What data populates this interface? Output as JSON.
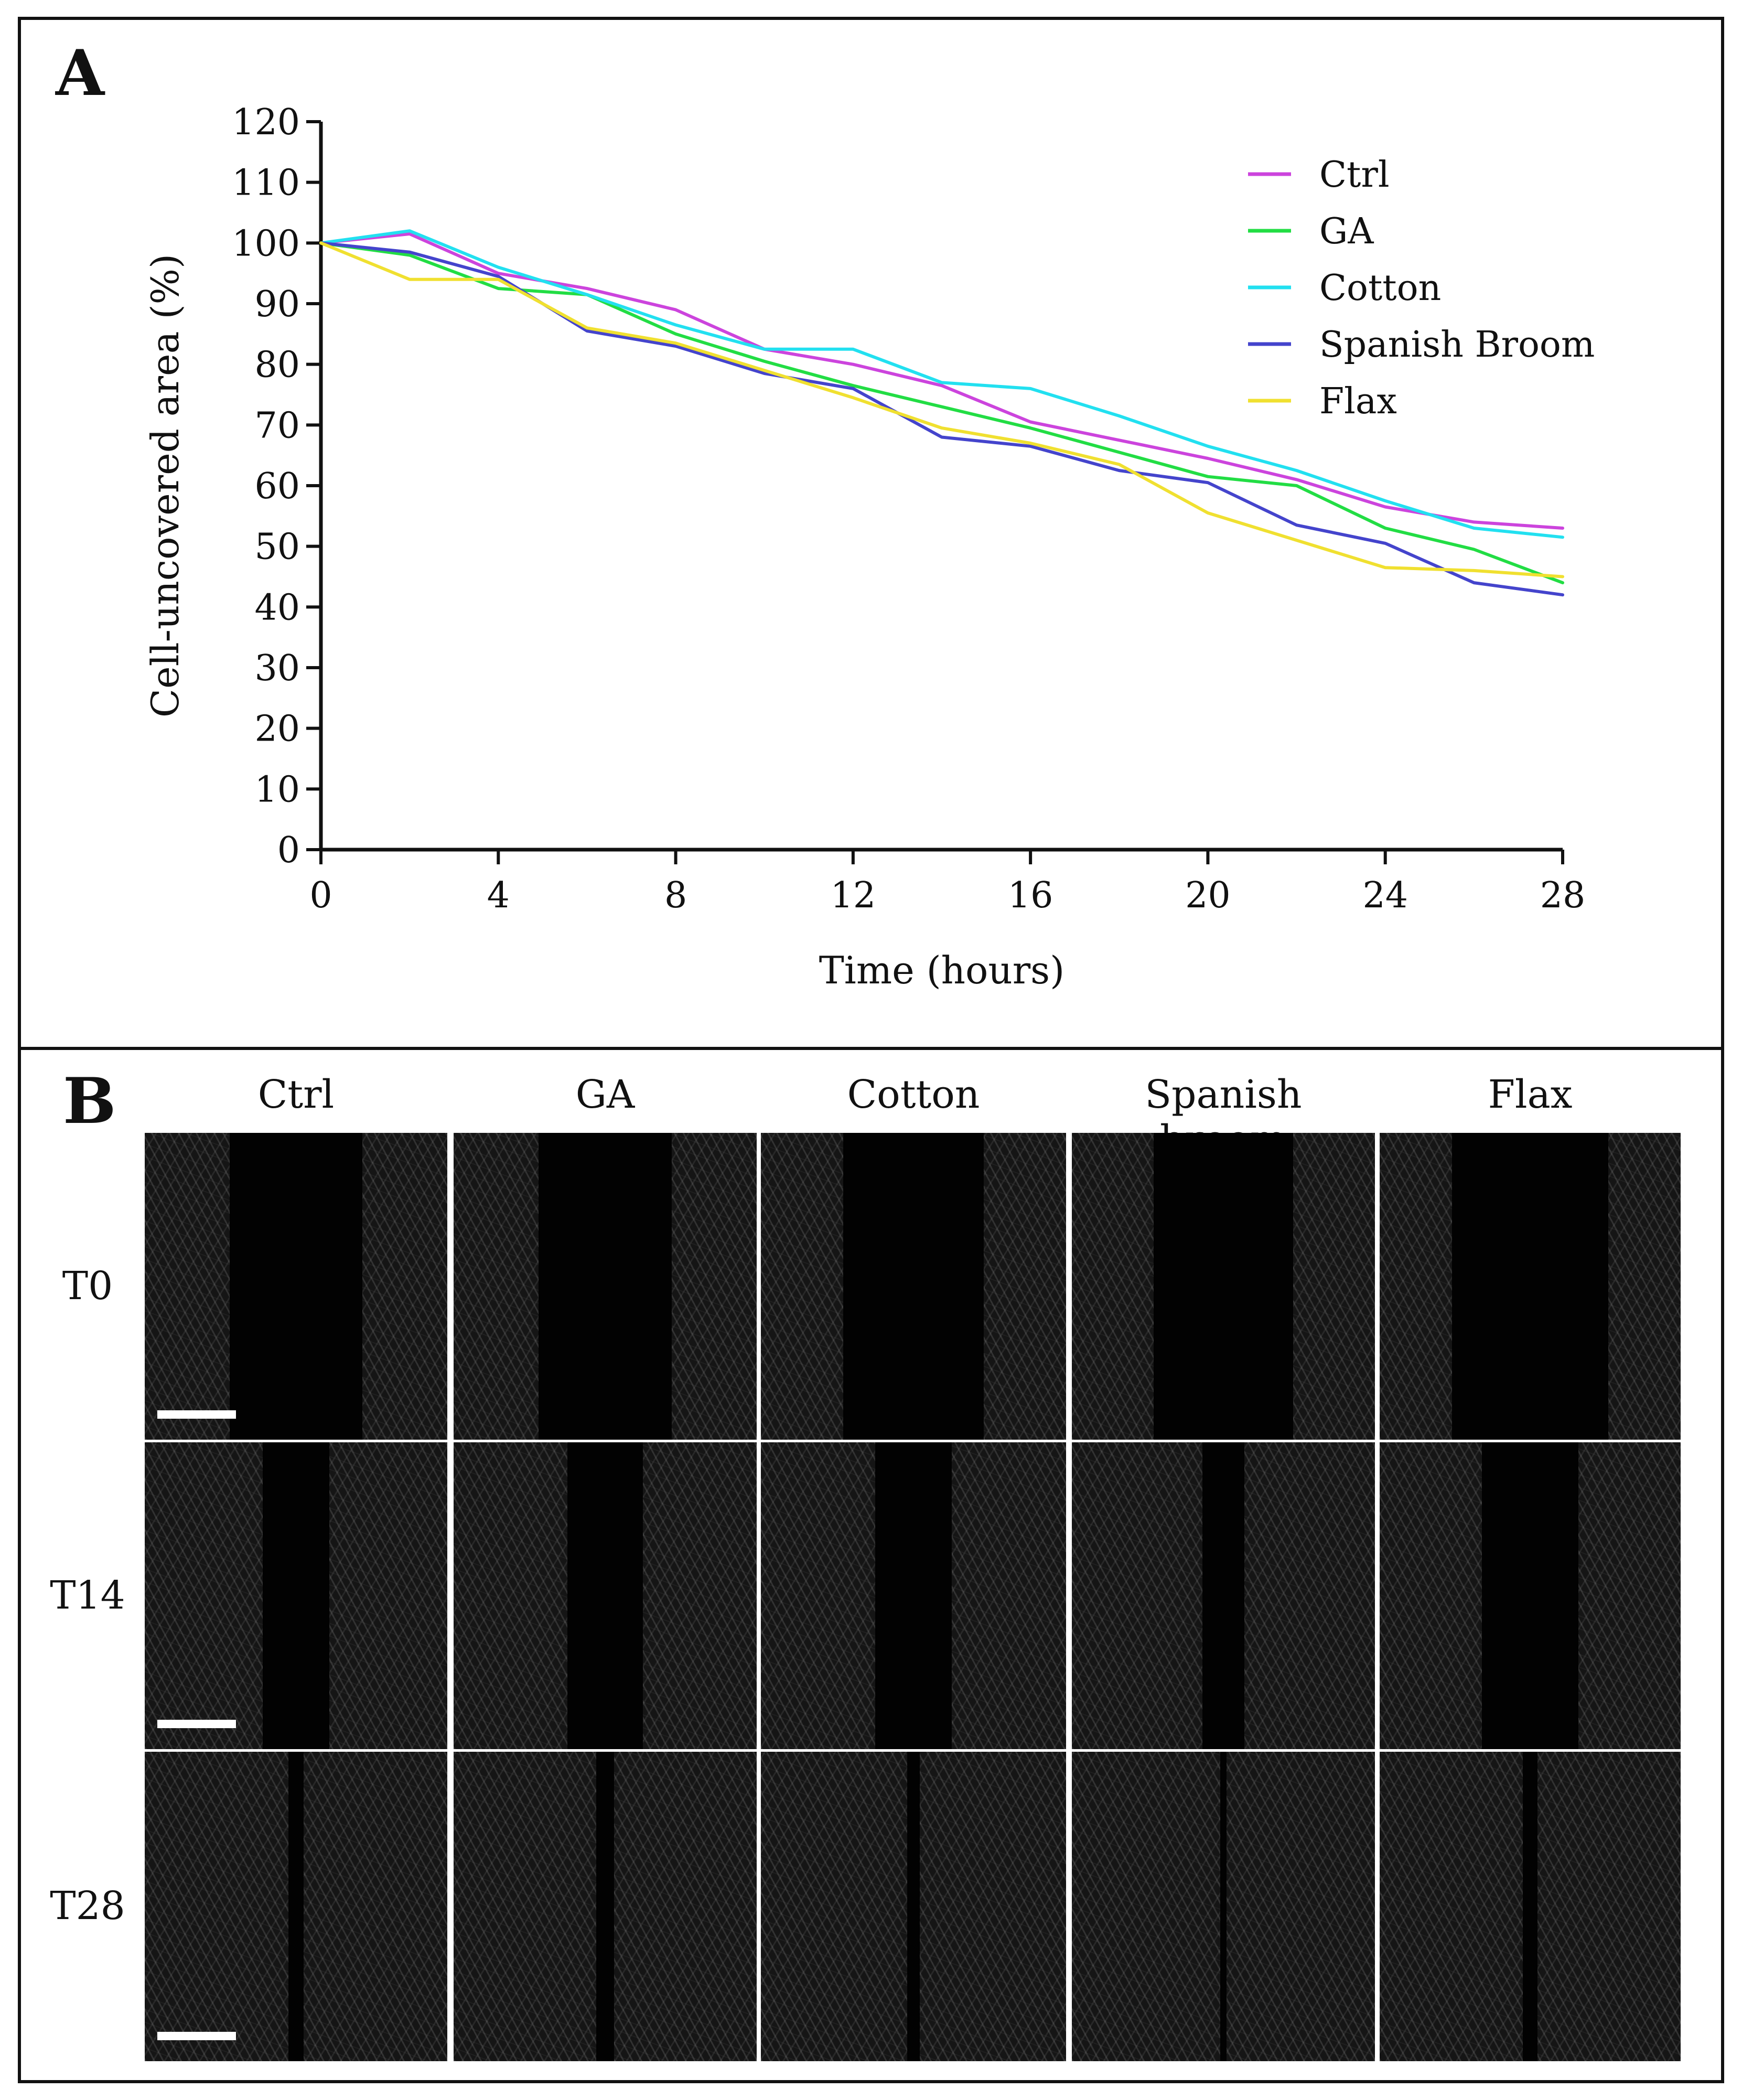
{
  "panel_a": {
    "letter": "A"
  },
  "panel_b": {
    "letter": "B",
    "columns": [
      "Ctrl",
      "GA",
      "Cotton",
      "Spanish broom",
      "Flax"
    ],
    "rows": [
      "T0",
      "T14",
      "T28"
    ],
    "gap_widths": {
      "T0": [
        0.44,
        0.44,
        0.46,
        0.46,
        0.52
      ],
      "T14": [
        0.22,
        0.25,
        0.25,
        0.14,
        0.32
      ],
      "T28": [
        0.05,
        0.06,
        0.04,
        0.02,
        0.05
      ]
    }
  },
  "chart_data": {
    "type": "line",
    "xlabel": "Time (hours)",
    "ylabel": "Cell-uncovered area (%)",
    "xlim": [
      0,
      28
    ],
    "ylim": [
      0,
      120
    ],
    "xticks": [
      0,
      4,
      8,
      12,
      16,
      20,
      24,
      28
    ],
    "yticks": [
      0,
      10,
      20,
      30,
      40,
      50,
      60,
      70,
      80,
      90,
      100,
      110,
      120
    ],
    "x": [
      0,
      2,
      4,
      6,
      8,
      10,
      12,
      14,
      16,
      18,
      20,
      22,
      24,
      26,
      28
    ],
    "legend_position": "top-right",
    "series": [
      {
        "name": "Ctrl",
        "color": "#cc44dd",
        "values": [
          100,
          101.5,
          95,
          92.5,
          89,
          82.5,
          80,
          76.5,
          70.5,
          67.5,
          64.5,
          61,
          56.5,
          54,
          53
        ]
      },
      {
        "name": "GA",
        "color": "#22dd44",
        "values": [
          100,
          98,
          92.5,
          91.5,
          85,
          80.5,
          76.5,
          73,
          69.5,
          65.5,
          61.5,
          60,
          53,
          49.5,
          44
        ]
      },
      {
        "name": "Cotton",
        "color": "#22e0f0",
        "values": [
          100,
          102,
          96,
          91.5,
          86.5,
          82.5,
          82.5,
          77,
          76,
          71.5,
          66.5,
          62.5,
          57.5,
          53,
          51.5
        ]
      },
      {
        "name": "Spanish Broom",
        "color": "#4444cc",
        "values": [
          100,
          98.5,
          94.5,
          85.5,
          83,
          78.5,
          76,
          68,
          66.5,
          62.5,
          60.5,
          53.5,
          50.5,
          44,
          42
        ]
      },
      {
        "name": "Flax",
        "color": "#f0e030",
        "values": [
          100,
          94,
          94,
          86,
          83.5,
          79,
          74.5,
          69.5,
          67,
          63.5,
          55.5,
          51,
          46.5,
          46,
          45
        ]
      }
    ]
  }
}
